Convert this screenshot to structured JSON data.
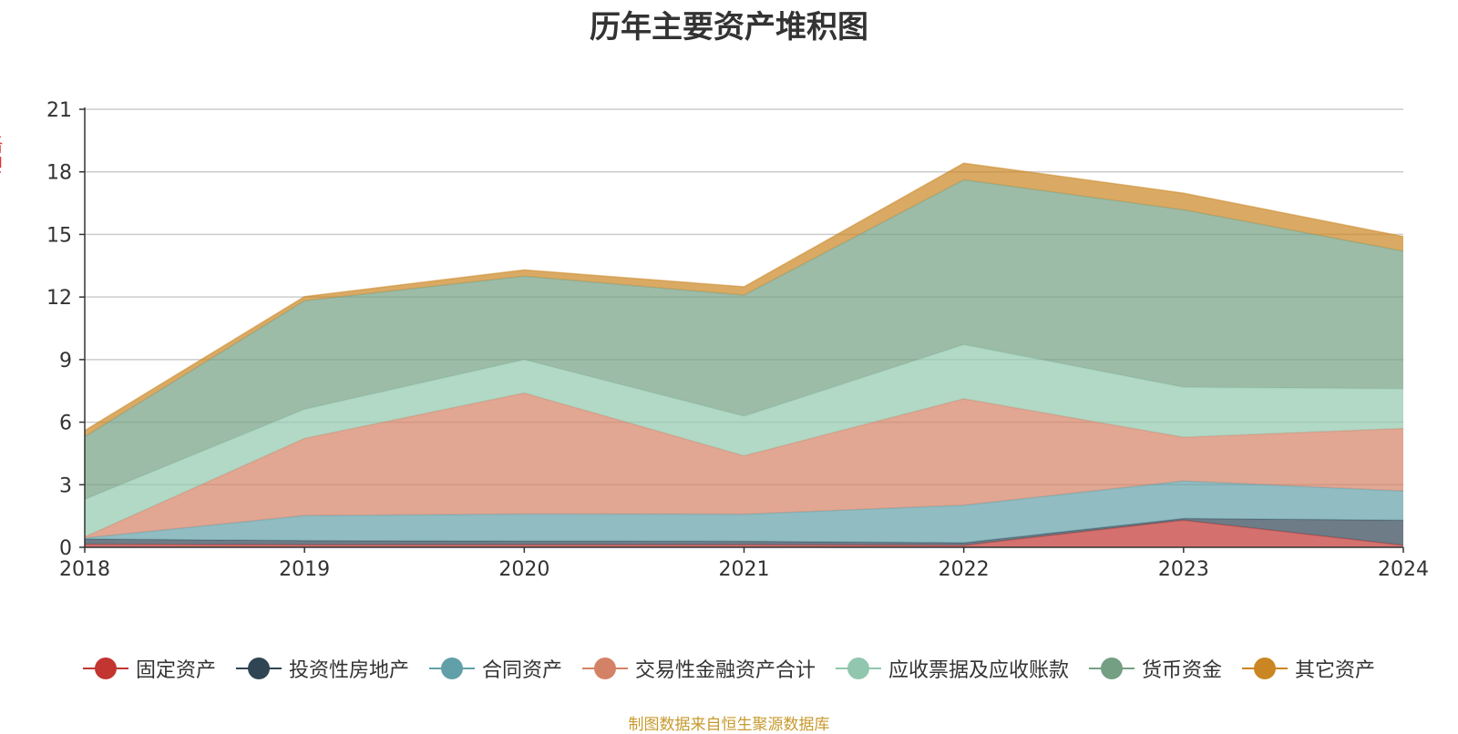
{
  "chart_data": {
    "type": "area",
    "stacked": true,
    "title": "历年主要资产堆积图",
    "ylabel": "(亿元)",
    "xlabel": "",
    "ylim": [
      0,
      21
    ],
    "yticks": [
      0,
      3,
      6,
      9,
      12,
      15,
      18,
      21
    ],
    "x": [
      "2018",
      "2019",
      "2020",
      "2021",
      "2022",
      "2023",
      "2024"
    ],
    "grid": true,
    "legend_position": "bottom",
    "source": "制图数据来自恒生聚源数据库",
    "series": [
      {
        "name": "固定资产",
        "color": "#c23531",
        "values": [
          0.15,
          0.12,
          0.12,
          0.12,
          0.1,
          1.3,
          0.1
        ]
      },
      {
        "name": "投资性房地产",
        "color": "#2f4554",
        "values": [
          0.25,
          0.2,
          0.18,
          0.17,
          0.12,
          0.08,
          1.2
        ]
      },
      {
        "name": "合同资产",
        "color": "#61a0a8",
        "values": [
          0.05,
          1.2,
          1.3,
          1.3,
          1.8,
          1.8,
          1.4
        ]
      },
      {
        "name": "交易性金融资产合计",
        "color": "#d48265",
        "values": [
          0.05,
          3.7,
          5.8,
          2.8,
          5.1,
          2.1,
          3.0
        ]
      },
      {
        "name": "应收票据及应收账款",
        "color": "#91c7ae",
        "values": [
          1.8,
          1.4,
          1.6,
          1.9,
          2.6,
          2.4,
          1.9
        ]
      },
      {
        "name": "货币资金",
        "color": "#749f83",
        "values": [
          3.0,
          5.2,
          4.0,
          5.8,
          7.9,
          8.5,
          6.6
        ]
      },
      {
        "name": "其它资产",
        "color": "#ca8622",
        "values": [
          0.3,
          0.2,
          0.3,
          0.4,
          0.8,
          0.8,
          0.7
        ]
      }
    ]
  }
}
